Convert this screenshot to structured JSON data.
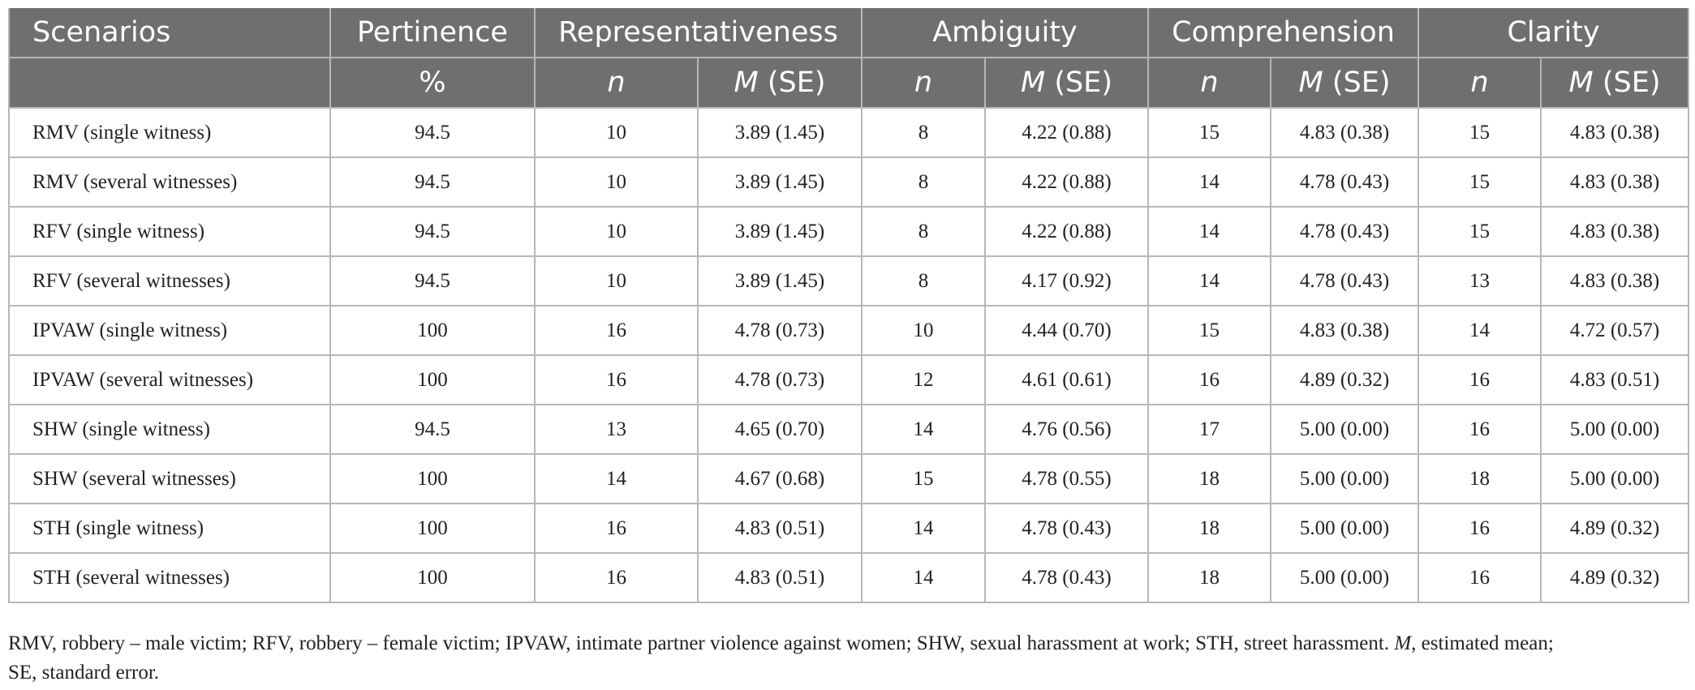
{
  "header": {
    "groups": [
      "Scenarios",
      "Pertinence",
      "Representativeness",
      "Ambiguity",
      "Comprehension",
      "Clarity"
    ],
    "sub": {
      "pct": "%",
      "n": "n",
      "m": "M",
      "se": " (SE)"
    }
  },
  "rows": [
    [
      "RMV (single witness)",
      "94.5",
      "10",
      "3.89 (1.45)",
      "8",
      "4.22 (0.88)",
      "15",
      "4.83 (0.38)",
      "15",
      "4.83 (0.38)"
    ],
    [
      "RMV (several witnesses)",
      "94.5",
      "10",
      "3.89 (1.45)",
      "8",
      "4.22 (0.88)",
      "14",
      "4.78 (0.43)",
      "15",
      "4.83 (0.38)"
    ],
    [
      "RFV (single witness)",
      "94.5",
      "10",
      "3.89 (1.45)",
      "8",
      "4.22 (0.88)",
      "14",
      "4.78 (0.43)",
      "15",
      "4.83 (0.38)"
    ],
    [
      "RFV (several witnesses)",
      "94.5",
      "10",
      "3.89 (1.45)",
      "8",
      "4.17 (0.92)",
      "14",
      "4.78 (0.43)",
      "13",
      "4.83 (0.38)"
    ],
    [
      "IPVAW (single witness)",
      "100",
      "16",
      "4.78 (0.73)",
      "10",
      "4.44 (0.70)",
      "15",
      "4.83 (0.38)",
      "14",
      "4.72 (0.57)"
    ],
    [
      "IPVAW (several witnesses)",
      "100",
      "16",
      "4.78 (0.73)",
      "12",
      "4.61 (0.61)",
      "16",
      "4.89 (0.32)",
      "16",
      "4.83 (0.51)"
    ],
    [
      "SHW (single witness)",
      "94.5",
      "13",
      "4.65 (0.70)",
      "14",
      "4.76 (0.56)",
      "17",
      "5.00 (0.00)",
      "16",
      "5.00 (0.00)"
    ],
    [
      "SHW (several witnesses)",
      "100",
      "14",
      "4.67 (0.68)",
      "15",
      "4.78 (0.55)",
      "18",
      "5.00 (0.00)",
      "18",
      "5.00 (0.00)"
    ],
    [
      "STH (single witness)",
      "100",
      "16",
      "4.83 (0.51)",
      "14",
      "4.78 (0.43)",
      "18",
      "5.00 (0.00)",
      "16",
      "4.89 (0.32)"
    ],
    [
      "STH (several witnesses)",
      "100",
      "16",
      "4.83 (0.51)",
      "14",
      "4.78 (0.43)",
      "18",
      "5.00 (0.00)",
      "16",
      "4.89 (0.32)"
    ]
  ],
  "footnote": {
    "part1": "RMV, robbery – male victim; RFV, robbery – female victim; IPVAW, intimate partner violence against women; SHW, sexual harassment at work; STH, street harassment. ",
    "m": "M",
    "part2": ", estimated mean;",
    "line2": "SE, standard error."
  }
}
